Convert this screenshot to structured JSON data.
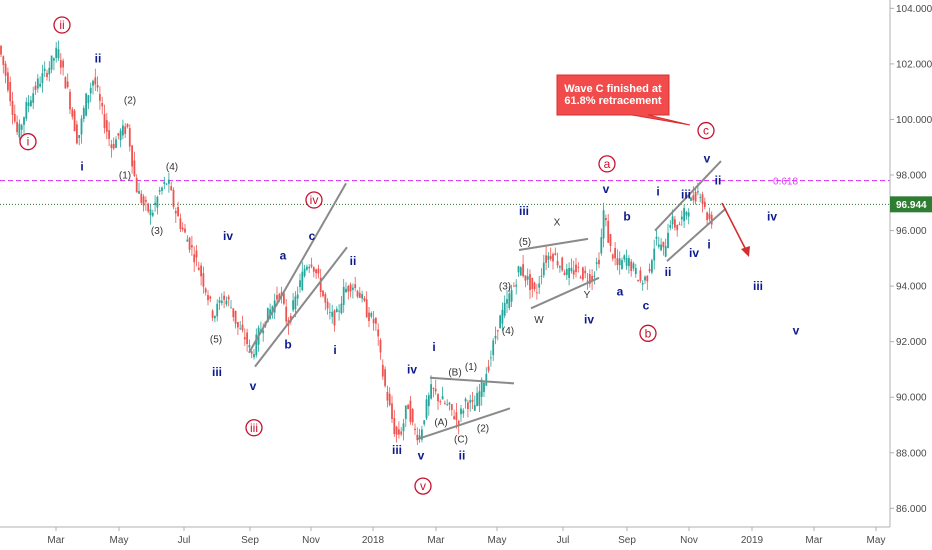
{
  "chart_data": {
    "type": "candlestick",
    "title": "",
    "xlabel": "",
    "ylabel": "",
    "ylim": [
      84.5,
      104.3
    ],
    "y_ticks": [
      "86.000",
      "88.000",
      "90.000",
      "92.000",
      "94.000",
      "96.000",
      "98.000",
      "100.000",
      "102.000",
      "104.000"
    ],
    "x_ticks": [
      "Mar",
      "May",
      "Jul",
      "Sep",
      "Nov",
      "2018",
      "Mar",
      "May",
      "Jul",
      "Sep",
      "Nov",
      "2019",
      "Mar",
      "May"
    ],
    "grid": false,
    "legend": "none",
    "colors": {
      "up": "#26a69a",
      "down": "#ef5350",
      "wave_blue": "#0d1a8c",
      "wave_red": "#c8102e",
      "fib": "#e040fb",
      "last": "#2e7d32",
      "arrow": "#d32f2f"
    },
    "price_path": [
      [
        0,
        102.8
      ],
      [
        10,
        101.3
      ],
      [
        20,
        99.4
      ],
      [
        30,
        100.6
      ],
      [
        40,
        101.3
      ],
      [
        50,
        101.8
      ],
      [
        60,
        102.5
      ],
      [
        70,
        101.0
      ],
      [
        80,
        99.2
      ],
      [
        88,
        100.7
      ],
      [
        96,
        101.5
      ],
      [
        106,
        100.0
      ],
      [
        114,
        99.0
      ],
      [
        122,
        99.5
      ],
      [
        130,
        99.7
      ],
      [
        138,
        97.6
      ],
      [
        146,
        96.9
      ],
      [
        154,
        96.6
      ],
      [
        162,
        97.4
      ],
      [
        170,
        97.8
      ],
      [
        176,
        96.9
      ],
      [
        184,
        96.1
      ],
      [
        192,
        95.5
      ],
      [
        200,
        94.8
      ],
      [
        208,
        93.9
      ],
      [
        216,
        92.9
      ],
      [
        224,
        93.6
      ],
      [
        232,
        93.4
      ],
      [
        240,
        92.5
      ],
      [
        248,
        92.1
      ],
      [
        254,
        91.5
      ],
      [
        262,
        92.4
      ],
      [
        272,
        93.1
      ],
      [
        282,
        93.8
      ],
      [
        290,
        92.6
      ],
      [
        300,
        93.8
      ],
      [
        308,
        94.8
      ],
      [
        314,
        94.9
      ],
      [
        322,
        94.1
      ],
      [
        330,
        93.0
      ],
      [
        338,
        92.8
      ],
      [
        346,
        93.8
      ],
      [
        354,
        94.1
      ],
      [
        362,
        93.7
      ],
      [
        370,
        93.0
      ],
      [
        378,
        92.6
      ],
      [
        386,
        90.6
      ],
      [
        392,
        89.6
      ],
      [
        398,
        88.6
      ],
      [
        404,
        88.8
      ],
      [
        410,
        89.8
      ],
      [
        416,
        88.8
      ],
      [
        422,
        88.6
      ],
      [
        428,
        89.6
      ],
      [
        434,
        90.3
      ],
      [
        440,
        90.0
      ],
      [
        446,
        89.8
      ],
      [
        454,
        89.5
      ],
      [
        460,
        89.1
      ],
      [
        468,
        89.9
      ],
      [
        476,
        89.6
      ],
      [
        484,
        90.4
      ],
      [
        492,
        91.3
      ],
      [
        500,
        92.6
      ],
      [
        508,
        93.3
      ],
      [
        516,
        94.0
      ],
      [
        522,
        94.7
      ],
      [
        530,
        94.2
      ],
      [
        538,
        93.7
      ],
      [
        546,
        94.9
      ],
      [
        554,
        95.2
      ],
      [
        562,
        94.8
      ],
      [
        570,
        94.4
      ],
      [
        578,
        94.6
      ],
      [
        586,
        94.4
      ],
      [
        594,
        94.3
      ],
      [
        602,
        95.1
      ],
      [
        606,
        96.7
      ],
      [
        612,
        95.4
      ],
      [
        620,
        94.7
      ],
      [
        628,
        95.0
      ],
      [
        636,
        94.6
      ],
      [
        644,
        94.1
      ],
      [
        650,
        94.4
      ],
      [
        658,
        95.7
      ],
      [
        666,
        95.2
      ],
      [
        672,
        96.4
      ],
      [
        680,
        96.1
      ],
      [
        688,
        96.7
      ],
      [
        696,
        97.2
      ],
      [
        702,
        97.5
      ],
      [
        708,
        96.6
      ],
      [
        712,
        96.4
      ]
    ],
    "levels": [
      {
        "label": "0.618",
        "y": 97.8
      },
      {
        "label": "96.944",
        "y": 96.944
      }
    ],
    "wave_labels": [
      {
        "text": "i",
        "style": "red-circled",
        "x": 28,
        "y": 99.2
      },
      {
        "text": "ii",
        "style": "red-circled",
        "x": 62,
        "y": 103.4
      },
      {
        "text": "ii",
        "style": "blue",
        "x": 98,
        "y": 102.2
      },
      {
        "text": "i",
        "style": "blue",
        "x": 82,
        "y": 98.3
      },
      {
        "text": "(2)",
        "style": "gray",
        "x": 130,
        "y": 100.7
      },
      {
        "text": "(1)",
        "style": "gray",
        "x": 125,
        "y": 98.0
      },
      {
        "text": "(4)",
        "style": "gray",
        "x": 172,
        "y": 98.3
      },
      {
        "text": "(3)",
        "style": "gray",
        "x": 157,
        "y": 96.0
      },
      {
        "text": "iv",
        "style": "blue",
        "x": 228,
        "y": 95.8
      },
      {
        "text": "(5)",
        "style": "gray",
        "x": 216,
        "y": 92.1
      },
      {
        "text": "iii",
        "style": "blue",
        "x": 217,
        "y": 90.9
      },
      {
        "text": "v",
        "style": "blue",
        "x": 253,
        "y": 90.4
      },
      {
        "text": "iii",
        "style": "red-circled",
        "x": 254,
        "y": 88.9
      },
      {
        "text": "a",
        "style": "blue",
        "x": 283,
        "y": 95.1
      },
      {
        "text": "b",
        "style": "blue",
        "x": 288,
        "y": 91.9
      },
      {
        "text": "c",
        "style": "blue",
        "x": 312,
        "y": 95.8
      },
      {
        "text": "iv",
        "style": "red-circled",
        "x": 314,
        "y": 97.1
      },
      {
        "text": "ii",
        "style": "blue",
        "x": 353,
        "y": 94.9
      },
      {
        "text": "i",
        "style": "blue",
        "x": 335,
        "y": 91.7
      },
      {
        "text": "iv",
        "style": "blue",
        "x": 412,
        "y": 91.0
      },
      {
        "text": "iii",
        "style": "blue",
        "x": 397,
        "y": 88.1
      },
      {
        "text": "v",
        "style": "blue",
        "x": 421,
        "y": 87.9
      },
      {
        "text": "v",
        "style": "red-circled",
        "x": 423,
        "y": 86.8
      },
      {
        "text": "i",
        "style": "blue",
        "x": 434,
        "y": 91.8
      },
      {
        "text": "(B)",
        "style": "gray",
        "x": 455,
        "y": 90.9
      },
      {
        "text": "(1)",
        "style": "gray",
        "x": 471,
        "y": 91.1
      },
      {
        "text": "(A)",
        "style": "gray",
        "x": 441,
        "y": 89.1
      },
      {
        "text": "(C)",
        "style": "gray",
        "x": 461,
        "y": 88.5
      },
      {
        "text": "(2)",
        "style": "gray",
        "x": 483,
        "y": 88.9
      },
      {
        "text": "ii",
        "style": "blue",
        "x": 462,
        "y": 87.9
      },
      {
        "text": "(3)",
        "style": "gray",
        "x": 505,
        "y": 94.0
      },
      {
        "text": "(4)",
        "style": "gray",
        "x": 508,
        "y": 92.4
      },
      {
        "text": "iii",
        "style": "blue",
        "x": 524,
        "y": 96.7
      },
      {
        "text": "(5)",
        "style": "gray",
        "x": 525,
        "y": 95.6
      },
      {
        "text": "X",
        "style": "gray",
        "x": 557,
        "y": 96.3
      },
      {
        "text": "W",
        "style": "gray",
        "x": 539,
        "y": 92.8
      },
      {
        "text": "Y",
        "style": "gray",
        "x": 587,
        "y": 93.7
      },
      {
        "text": "iv",
        "style": "blue",
        "x": 589,
        "y": 92.8
      },
      {
        "text": "a",
        "style": "red-circled",
        "x": 607,
        "y": 98.4
      },
      {
        "text": "v",
        "style": "blue",
        "x": 606,
        "y": 97.5
      },
      {
        "text": "b",
        "style": "blue",
        "x": 627,
        "y": 96.5
      },
      {
        "text": "a",
        "style": "blue",
        "x": 620,
        "y": 93.8
      },
      {
        "text": "c",
        "style": "blue",
        "x": 646,
        "y": 93.3
      },
      {
        "text": "b",
        "style": "red-circled",
        "x": 648,
        "y": 92.3
      },
      {
        "text": "i",
        "style": "blue",
        "x": 658,
        "y": 97.4
      },
      {
        "text": "ii",
        "style": "blue",
        "x": 668,
        "y": 94.5
      },
      {
        "text": "iii",
        "style": "blue",
        "x": 686,
        "y": 97.3
      },
      {
        "text": "iv",
        "style": "blue",
        "x": 694,
        "y": 95.2
      },
      {
        "text": "ii",
        "style": "blue",
        "x": 718,
        "y": 97.8
      },
      {
        "text": "i",
        "style": "blue",
        "x": 709,
        "y": 95.5
      },
      {
        "text": "v",
        "style": "blue",
        "x": 707,
        "y": 98.6
      },
      {
        "text": "c",
        "style": "red-circled",
        "x": 706,
        "y": 99.6
      },
      {
        "text": "iv",
        "style": "blue",
        "x": 772,
        "y": 96.5
      },
      {
        "text": "iii",
        "style": "blue",
        "x": 758,
        "y": 94.0
      },
      {
        "text": "v",
        "style": "blue",
        "x": 796,
        "y": 92.4
      }
    ],
    "channels": [
      [
        [
          249,
          91.6
        ],
        [
          346,
          97.7
        ]
      ],
      [
        [
          255,
          91.1
        ],
        [
          347,
          95.4
        ]
      ],
      [
        [
          430,
          90.7
        ],
        [
          514,
          90.5
        ]
      ],
      [
        [
          418,
          88.5
        ],
        [
          510,
          89.6
        ]
      ],
      [
        [
          519,
          95.3
        ],
        [
          588,
          95.7
        ]
      ],
      [
        [
          531,
          93.2
        ],
        [
          599,
          94.3
        ]
      ],
      [
        [
          655,
          96.0
        ],
        [
          721,
          98.5
        ]
      ],
      [
        [
          667,
          94.9
        ],
        [
          726,
          96.8
        ]
      ]
    ],
    "annotation": "Wave C finished at 61.8% retracement"
  }
}
